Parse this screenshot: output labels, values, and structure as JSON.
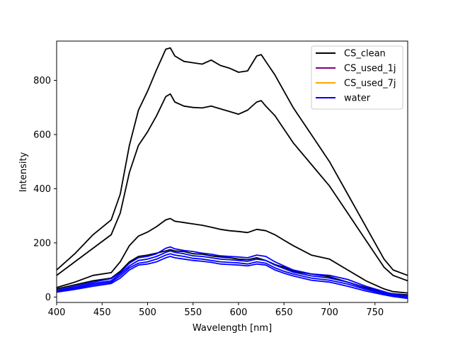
{
  "chart_data": {
    "type": "line",
    "title": "",
    "xlabel": "Wavelength [nm]",
    "ylabel": "Intensity",
    "xlim": [
      400,
      786
    ],
    "ylim": [
      -20,
      945
    ],
    "xticks": [
      400,
      450,
      500,
      550,
      600,
      650,
      700,
      750
    ],
    "yticks": [
      0,
      200,
      400,
      600,
      800
    ],
    "grid": false,
    "legend": {
      "placement": "top-right"
    },
    "legend_entries": [
      {
        "name": "CS_clean",
        "color": "#000000"
      },
      {
        "name": "CS_used_1j",
        "color": "#800080"
      },
      {
        "name": "CS_used_7j",
        "color": "#ffa500"
      },
      {
        "name": "water",
        "color": "#0000ff"
      }
    ],
    "series": [
      {
        "name": "CS_clean",
        "color": "#000000",
        "x": [
          400,
          420,
          440,
          460,
          470,
          480,
          490,
          500,
          510,
          520,
          525,
          530,
          540,
          550,
          560,
          570,
          580,
          590,
          600,
          610,
          620,
          625,
          630,
          640,
          650,
          660,
          680,
          700,
          720,
          740,
          760,
          770,
          786
        ],
        "y": [
          100,
          160,
          230,
          285,
          380,
          560,
          690,
          760,
          840,
          915,
          920,
          890,
          870,
          865,
          860,
          875,
          855,
          845,
          830,
          835,
          890,
          895,
          870,
          820,
          760,
          700,
          600,
          500,
          380,
          260,
          140,
          100,
          80
        ]
      },
      {
        "name": "CS_clean",
        "color": "#000000",
        "x": [
          400,
          420,
          440,
          460,
          470,
          480,
          490,
          500,
          510,
          520,
          525,
          530,
          540,
          550,
          560,
          570,
          580,
          590,
          600,
          610,
          620,
          625,
          630,
          640,
          650,
          660,
          680,
          700,
          720,
          740,
          760,
          770,
          786
        ],
        "y": [
          80,
          130,
          180,
          230,
          310,
          460,
          560,
          610,
          670,
          740,
          750,
          720,
          705,
          700,
          698,
          705,
          695,
          685,
          675,
          690,
          720,
          725,
          705,
          670,
          620,
          570,
          490,
          410,
          310,
          210,
          110,
          80,
          60
        ]
      },
      {
        "name": "CS_clean",
        "color": "#000000",
        "x": [
          400,
          420,
          440,
          460,
          470,
          480,
          490,
          500,
          510,
          520,
          525,
          530,
          540,
          550,
          560,
          570,
          580,
          590,
          600,
          610,
          620,
          630,
          640,
          650,
          660,
          680,
          700,
          720,
          740,
          760,
          770,
          786
        ],
        "y": [
          35,
          55,
          80,
          90,
          130,
          190,
          225,
          240,
          260,
          285,
          290,
          280,
          275,
          270,
          265,
          258,
          250,
          245,
          242,
          238,
          250,
          245,
          230,
          210,
          190,
          155,
          140,
          100,
          60,
          30,
          20,
          15
        ]
      },
      {
        "name": "CS_clean",
        "color": "#000000",
        "x": [
          400,
          420,
          440,
          460,
          470,
          480,
          490,
          500,
          510,
          520,
          525,
          530,
          540,
          550,
          560,
          570,
          580,
          590,
          600,
          610,
          620,
          630,
          640,
          650,
          660,
          680,
          700,
          720,
          740,
          760,
          770,
          786
        ],
        "y": [
          30,
          45,
          60,
          70,
          95,
          130,
          150,
          155,
          162,
          170,
          175,
          170,
          168,
          160,
          158,
          152,
          148,
          145,
          140,
          138,
          145,
          135,
          120,
          110,
          95,
          85,
          75,
          55,
          35,
          18,
          12,
          8
        ]
      },
      {
        "name": "water",
        "color": "#0000ff",
        "x": [
          400,
          420,
          440,
          460,
          470,
          480,
          490,
          500,
          510,
          520,
          525,
          530,
          540,
          550,
          560,
          570,
          580,
          590,
          600,
          610,
          620,
          630,
          640,
          650,
          660,
          680,
          700,
          720,
          740,
          760,
          770,
          786
        ],
        "y": [
          25,
          40,
          55,
          68,
          90,
          125,
          145,
          150,
          160,
          180,
          185,
          178,
          172,
          168,
          162,
          158,
          152,
          150,
          148,
          145,
          155,
          150,
          130,
          115,
          100,
          85,
          80,
          65,
          40,
          20,
          10,
          5
        ]
      },
      {
        "name": "water",
        "color": "#0000ff",
        "x": [
          400,
          420,
          440,
          460,
          470,
          480,
          490,
          500,
          510,
          520,
          525,
          530,
          540,
          550,
          560,
          570,
          580,
          590,
          600,
          610,
          620,
          630,
          640,
          650,
          660,
          680,
          700,
          720,
          740,
          760,
          770,
          786
        ],
        "y": [
          22,
          35,
          50,
          60,
          85,
          115,
          135,
          140,
          150,
          165,
          170,
          165,
          160,
          152,
          150,
          145,
          140,
          138,
          135,
          132,
          140,
          135,
          118,
          105,
          92,
          78,
          70,
          55,
          32,
          15,
          8,
          2
        ]
      },
      {
        "name": "water",
        "color": "#0000ff",
        "x": [
          400,
          420,
          440,
          460,
          470,
          480,
          490,
          500,
          510,
          520,
          525,
          530,
          540,
          550,
          560,
          570,
          580,
          590,
          600,
          610,
          620,
          630,
          640,
          650,
          660,
          680,
          700,
          720,
          740,
          760,
          770,
          786
        ],
        "y": [
          20,
          32,
          45,
          55,
          78,
          108,
          125,
          130,
          140,
          155,
          160,
          155,
          150,
          143,
          140,
          135,
          130,
          128,
          126,
          122,
          130,
          125,
          108,
          95,
          85,
          70,
          62,
          48,
          28,
          12,
          5,
          0
        ]
      },
      {
        "name": "water",
        "color": "#0000ff",
        "x": [
          400,
          420,
          440,
          460,
          470,
          480,
          490,
          500,
          510,
          520,
          525,
          530,
          540,
          550,
          560,
          570,
          580,
          590,
          600,
          610,
          620,
          630,
          640,
          650,
          660,
          680,
          700,
          720,
          740,
          760,
          770,
          786
        ],
        "y": [
          18,
          28,
          40,
          50,
          70,
          100,
          118,
          122,
          130,
          145,
          150,
          145,
          140,
          135,
          132,
          128,
          122,
          120,
          118,
          115,
          122,
          118,
          100,
          88,
          78,
          62,
          55,
          40,
          22,
          8,
          2,
          -5
        ]
      }
    ]
  }
}
